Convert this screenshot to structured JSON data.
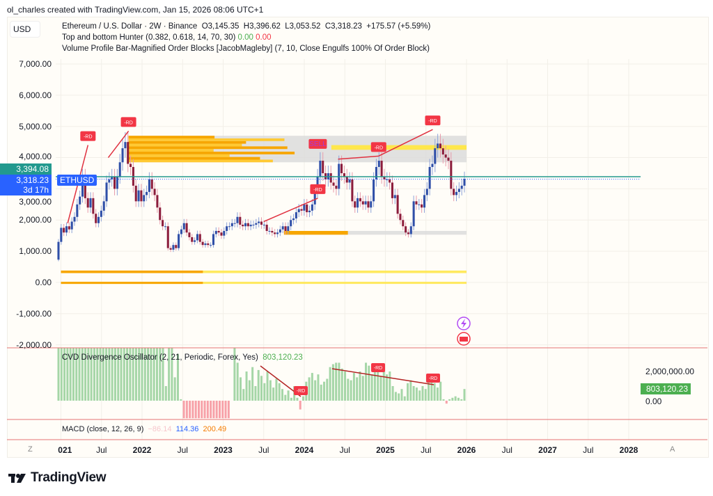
{
  "credit": "ol_charles created with TradingView.com, Jan 15, 2026 08:06 UTC+1",
  "currency_button": "USD",
  "legend": {
    "symbol": "Ethereum / U.S. Dollar · 2W · Binance",
    "open": "O3,145.35",
    "high": "H3,396.62",
    "low": "L3,053.52",
    "close": "C3,318.23",
    "change": "+175.57 (+5.59%)",
    "ind1_name": "Top and bottom Hunter (0.382, 0.618, 14, 70, 30)",
    "ind1_v1": "0.00",
    "ind1_v2": "0.00",
    "ind2_name": "Volume Profile Bar-Magnified Order Blocks [JacobMagleby] (7, 10, Close Engulfs 100% Of Order Block)"
  },
  "price_badges": {
    "high_line": "3,394.08",
    "last": "3,318.23",
    "countdown": "3d 17h",
    "symbol": "ETHUSD"
  },
  "cvd": {
    "title": "CVD Divergence Oscillator (2, 21, Periodic, Forex, Yes)",
    "value": "803,120.23",
    "axis_top": "2,000,000.00",
    "axis_zero": "0.00"
  },
  "macd": {
    "title": "MACD (close, 12, 26, 9)",
    "v1": "−86.14",
    "v2": "114.36",
    "v3": "200.49"
  },
  "time_axis": {
    "left_button": "Z",
    "right_button": "A"
  },
  "brand": "TradingView",
  "colors": {
    "up": "#2f4fa8",
    "down": "#8c1d3c",
    "rd": "#f23645",
    "cvd_pos": "#a5d6a7",
    "cvd_neg": "#f7a1a8",
    "teal": "#22998e",
    "last": "#2962ff",
    "ob_orange": "#f7a600",
    "ob_yellow": "#ffe74c",
    "zone_grey": "#d9d9d9"
  },
  "chart_data": {
    "type": "candlestick",
    "symbol": "ETHUSD",
    "interval": "2W",
    "start": "2021-01",
    "yticks": [
      "7,000.00",
      "6,000.00",
      "5,000.00",
      "4,000.00",
      "3,000.00",
      "2,000.00",
      "1,000.00",
      "0.00",
      "-1,000.00",
      "-2,000.00"
    ],
    "ytick_values": [
      7000,
      6000,
      5000,
      4000,
      3000,
      2000,
      1000,
      0,
      -1000,
      -2000
    ],
    "xticks": [
      {
        "label": "021",
        "year": true,
        "t": 2021.05
      },
      {
        "label": "Jul",
        "t": 2021.5
      },
      {
        "label": "2022",
        "year": true,
        "t": 2022
      },
      {
        "label": "Jul",
        "t": 2022.5
      },
      {
        "label": "2023",
        "year": true,
        "t": 2023
      },
      {
        "label": "Jul",
        "t": 2023.5
      },
      {
        "label": "2024",
        "year": true,
        "t": 2024
      },
      {
        "label": "Jul",
        "t": 2024.5
      },
      {
        "label": "2025",
        "year": true,
        "t": 2025
      },
      {
        "label": "Jul",
        "t": 2025.5
      },
      {
        "label": "2026",
        "year": true,
        "t": 2026
      },
      {
        "label": "Jul",
        "t": 2026.5
      },
      {
        "label": "2027",
        "year": true,
        "t": 2027
      },
      {
        "label": "Jul",
        "t": 2027.5
      },
      {
        "label": "2028",
        "year": true,
        "t": 2028
      }
    ],
    "first_open": 730,
    "closes": [
      1300,
      1750,
      1600,
      1800,
      1700,
      1950,
      2100,
      2500,
      2750,
      3400,
      2700,
      2400,
      2700,
      2200,
      1900,
      2100,
      2300,
      2600,
      3200,
      3300,
      3400,
      3000,
      3400,
      3850,
      4300,
      4500,
      3800,
      3700,
      3100,
      2600,
      2950,
      2600,
      2800,
      2900,
      3300,
      3000,
      2800,
      2400,
      2000,
      1800,
      1800,
      1100,
      1050,
      1200,
      1100,
      1550,
      1700,
      1900,
      1600,
      1450,
      1300,
      1350,
      1550,
      1300,
      1200,
      1250,
      1200,
      1200,
      1550,
      1650,
      1600,
      1500,
      1650,
      1800,
      1800,
      1900,
      1900,
      2100,
      1850,
      1800,
      1900,
      1800,
      1850,
      1850,
      1900,
      1950,
      1850,
      1850,
      1650,
      1650,
      1600,
      1550,
      1600,
      1700,
      1800,
      1650,
      1800,
      2000,
      2050,
      2250,
      2350,
      2300,
      2500,
      2250,
      2300,
      2500,
      2900,
      3400,
      3900,
      3500,
      3300,
      3500,
      3200,
      3100,
      3000,
      3800,
      3500,
      3400,
      3200,
      3300,
      2600,
      2400,
      2700,
      2600,
      2500,
      2600,
      2400,
      2600,
      3300,
      3700,
      3900,
      3400,
      3300,
      3300,
      3200,
      2700,
      2800,
      2200,
      2000,
      1800,
      1600,
      1550,
      1800,
      2600,
      2500,
      2500,
      2400,
      2800,
      3000,
      3700,
      3800,
      4300,
      4450,
      4300,
      4100,
      4000,
      3900,
      3000,
      2800,
      2900,
      3000,
      3100,
      3318.23
    ],
    "levels": {
      "high_line": 3394.08,
      "last": 3318.23
    },
    "zones": [
      {
        "from": "2021-11",
        "to": "2026-01",
        "low": 3850,
        "high": 4700,
        "kind": "bearish order block"
      },
      {
        "from": "2023-10",
        "to": "2026-01",
        "low": 1530,
        "high": 1650,
        "kind": "bullish order block"
      },
      {
        "from": "2021-01",
        "to": "2026-01",
        "low": 300,
        "high": 380,
        "kind": "bullish order block"
      },
      {
        "from": "2021-01",
        "to": "2026-01",
        "low": -20,
        "high": 20,
        "kind": "bullish order block"
      }
    ],
    "signals": [
      {
        "label": "-RD",
        "date": "2021-05",
        "price": 4400,
        "from_date": "2021-02",
        "from_price": 1900
      },
      {
        "label": "-RD",
        "date": "2021-11",
        "price": 4850,
        "from_date": "2021-08",
        "from_price": 4000
      },
      {
        "label": "-RD",
        "date": "2024-03",
        "price": 2700,
        "from_date": "2023-07",
        "from_price": 1950
      },
      {
        "label": "SELL",
        "date": "2024-03",
        "price": 4150
      },
      {
        "label": "-RD",
        "date": "2024-12",
        "price": 4050,
        "from_date": "2024-06",
        "from_price": 3950
      },
      {
        "label": "-RD",
        "date": "2025-08",
        "price": 4900,
        "from_date": "2024-12",
        "from_price": 4050
      }
    ],
    "cvd_values_millions": [
      3.6,
      3.6,
      3.6,
      3.6,
      3.6,
      3.6,
      3.6,
      3.6,
      3.6,
      3.6,
      3.6,
      3.6,
      3.6,
      3.6,
      3.6,
      3.6,
      3.6,
      3.6,
      3.6,
      3.6,
      3.6,
      3.6,
      3.6,
      3.6,
      3.6,
      3.6,
      3.6,
      3.6,
      3.6,
      3.6,
      3.6,
      3.6,
      3.6,
      3.6,
      3.6,
      3.6,
      1.0,
      3.6,
      3.6,
      1.6,
      3.2,
      0.1,
      -1.2,
      -1.2,
      -1.2,
      -1.2,
      -1.2,
      -1.2,
      -1.2,
      -1.2,
      -1.2,
      -1.2,
      -1.2,
      -1.2,
      -1.2,
      -1.2,
      -1.2,
      -1.2,
      0,
      3.6,
      2.6,
      1.6,
      0.8,
      2.0,
      1.4,
      2.3,
      1.0,
      2.1,
      1.7,
      1.2,
      2.0,
      1.4,
      0.9,
      1.5,
      1.2,
      0.8,
      0.4,
      0.7,
      0.2,
      1.0,
      0.2,
      -0.6,
      0.3,
      1.3,
      1.6,
      1.9,
      1.4,
      1.8,
      1.1,
      1.3,
      1.5,
      2.3,
      2.5,
      2.6,
      2.6,
      2.2,
      2.0,
      1.5,
      1.4,
      1.9,
      1.6,
      2.0,
      1.7,
      2.6,
      2.4,
      1.8,
      2.1,
      2.1,
      1.7,
      2.0,
      1.8,
      2.0,
      1.0,
      0.6,
      0.5,
      0.8,
      0.3,
      1.2,
      1.4,
      1.0,
      0.9,
      0.7,
      1.0,
      0.8,
      1.3,
      1.5,
      1.2,
      0.9,
      1.3,
      0.1,
      -0.2,
      0.1,
      0.2,
      0.3,
      0.2,
      0.1,
      0.8
    ],
    "cvd_ylim": [
      -1.3,
      3.6
    ]
  }
}
